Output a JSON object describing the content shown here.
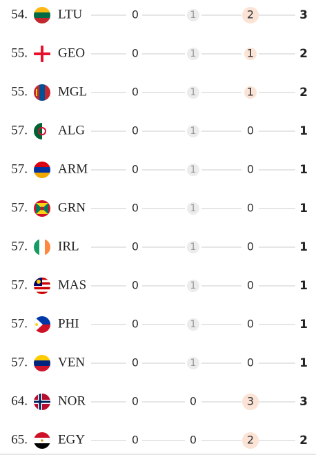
{
  "rows": [
    [
      "54.",
      "LTU",
      0,
      1,
      2,
      3
    ],
    [
      "55.",
      "GEO",
      0,
      1,
      1,
      2
    ],
    [
      "55.",
      "MGL",
      0,
      1,
      1,
      2
    ],
    [
      "57.",
      "ALG",
      0,
      1,
      0,
      1
    ],
    [
      "57.",
      "ARM",
      0,
      1,
      0,
      1
    ],
    [
      "57.",
      "GRN",
      0,
      1,
      0,
      1
    ],
    [
      "57.",
      "IRL",
      0,
      1,
      0,
      1
    ],
    [
      "57.",
      "MAS",
      0,
      1,
      0,
      1
    ],
    [
      "57.",
      "PHI",
      0,
      1,
      0,
      1
    ],
    [
      "57.",
      "VEN",
      0,
      1,
      0,
      1
    ],
    [
      "64.",
      "NOR",
      0,
      0,
      3,
      3
    ],
    [
      "65.",
      "EGY",
      0,
      0,
      2,
      2
    ]
  ]
}
